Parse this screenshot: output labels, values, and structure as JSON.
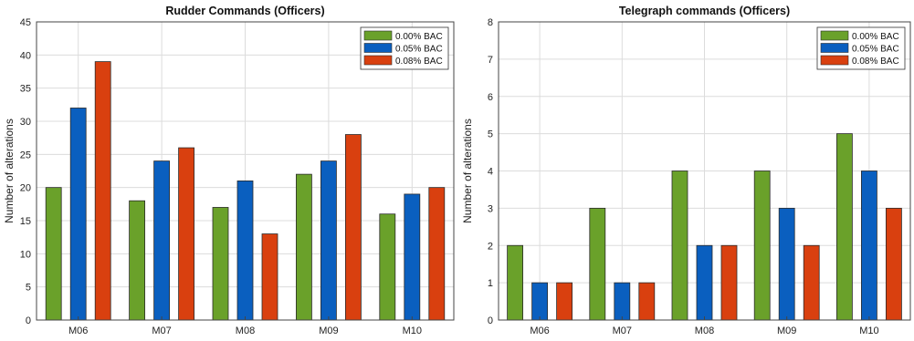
{
  "chart_data": [
    {
      "type": "bar",
      "title": "Rudder Commands (Officers)",
      "ylabel": "Number of alterations",
      "xlabel": "",
      "categories": [
        "M06",
        "M07",
        "M08",
        "M09",
        "M10"
      ],
      "ylim": [
        0,
        45
      ],
      "yticks": [
        0,
        5,
        10,
        15,
        20,
        25,
        30,
        35,
        40,
        45
      ],
      "grid": true,
      "legend_position": "top-right",
      "series": [
        {
          "name": "0.00% BAC",
          "color": "#6aa12a",
          "values": [
            20,
            18,
            17,
            22,
            16
          ]
        },
        {
          "name": "0.05% BAC",
          "color": "#0a5fbf",
          "values": [
            32,
            24,
            21,
            24,
            19
          ]
        },
        {
          "name": "0.08% BAC",
          "color": "#d9400f",
          "values": [
            39,
            26,
            13,
            28,
            20
          ]
        }
      ]
    },
    {
      "type": "bar",
      "title": "Telegraph commands (Officers)",
      "ylabel": "Number of alterations",
      "xlabel": "",
      "categories": [
        "M06",
        "M07",
        "M08",
        "M09",
        "M10"
      ],
      "ylim": [
        0,
        8
      ],
      "yticks": [
        0,
        1,
        2,
        3,
        4,
        5,
        6,
        7,
        8
      ],
      "grid": true,
      "legend_position": "top-right",
      "series": [
        {
          "name": "0.00% BAC",
          "color": "#6aa12a",
          "values": [
            2,
            3,
            4,
            4,
            5
          ]
        },
        {
          "name": "0.05% BAC",
          "color": "#0a5fbf",
          "values": [
            1,
            1,
            2,
            3,
            4
          ]
        },
        {
          "name": "0.08% BAC",
          "color": "#d9400f",
          "values": [
            1,
            1,
            2,
            2,
            3
          ]
        }
      ]
    }
  ]
}
